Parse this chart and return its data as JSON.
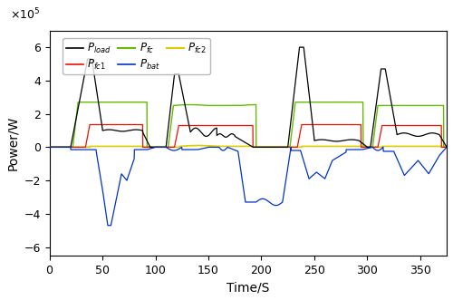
{
  "xlabel": "Time/S",
  "ylabel": "Power/W",
  "xlim": [
    0,
    375
  ],
  "ylim": [
    -6.5,
    7
  ],
  "yticks": [
    -6,
    -4,
    -2,
    0,
    2,
    4,
    6
  ],
  "xticks": [
    0,
    50,
    100,
    150,
    200,
    250,
    300,
    350
  ],
  "scale_label": "×10⁵",
  "colors": {
    "pload": "#000000",
    "pfc": "#66bb00",
    "pfc1": "#ee1100",
    "pfc2": "#ddcc00",
    "pbat": "#0033cc"
  }
}
